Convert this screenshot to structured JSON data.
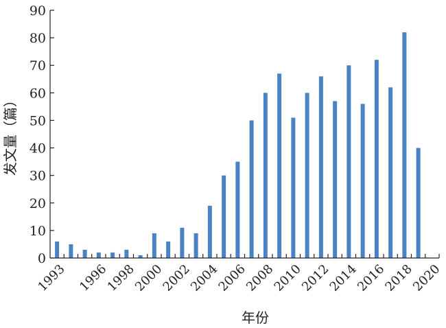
{
  "chart_data": {
    "type": "bar",
    "title": "",
    "xlabel": "年份",
    "ylabel": "发文量（篇）",
    "ylim": [
      0,
      90
    ],
    "yticks": [
      0,
      10,
      20,
      30,
      40,
      50,
      60,
      70,
      80,
      90
    ],
    "categories": [
      "1993",
      "1994",
      "1995",
      "1996",
      "1997",
      "1998",
      "1999",
      "2000",
      "2001",
      "2002",
      "2003",
      "2004",
      "2005",
      "2006",
      "2007",
      "2008",
      "2009",
      "2010",
      "2011",
      "2012",
      "2013",
      "2014",
      "2015",
      "2016",
      "2017",
      "2018",
      "2019",
      "2020"
    ],
    "values": [
      6,
      5,
      3,
      2,
      2,
      3,
      1,
      9,
      6,
      11,
      9,
      19,
      30,
      35,
      50,
      60,
      67,
      51,
      60,
      66,
      57,
      70,
      56,
      72,
      62,
      82,
      40,
      0
    ],
    "xtick_labels": [
      "1993",
      "1996",
      "1998",
      "2000",
      "2002",
      "2004",
      "2006",
      "2008",
      "2010",
      "2012",
      "2014",
      "2016",
      "2018",
      "2020"
    ],
    "grid": false,
    "colors": {
      "bar": "#4a83c4",
      "axis": "#231f20"
    }
  }
}
